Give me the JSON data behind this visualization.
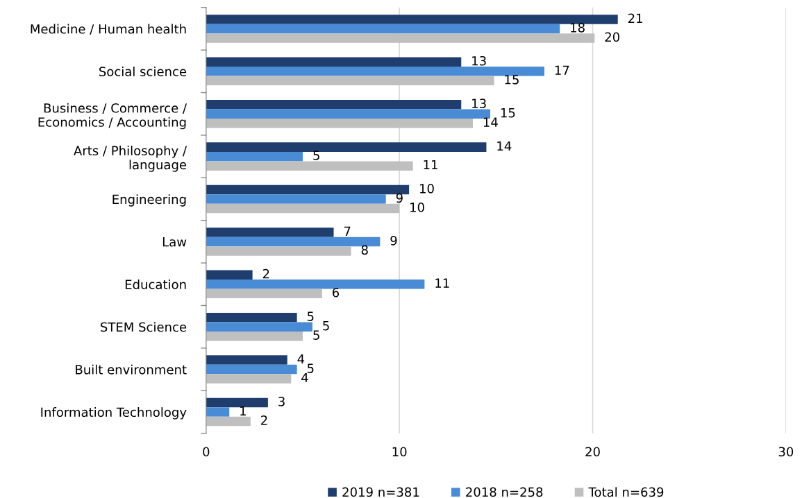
{
  "chart_data": {
    "type": "bar",
    "orientation": "horizontal",
    "categories": [
      "Medicine / Human health",
      "Social science",
      "Business / Commerce /\nEconomics / Accounting",
      "Arts / Philosophy /\nlanguage",
      "Engineering",
      "Law",
      "Education",
      "STEM Science",
      "Built environment",
      "Information Technology"
    ],
    "series": [
      {
        "name": "2019 n=381",
        "color": "#1f3e6e",
        "values": [
          21.3,
          13.2,
          13.2,
          14.5,
          10.5,
          6.6,
          2.4,
          4.7,
          4.2,
          3.2
        ],
        "value_labels": [
          "21",
          "13",
          "13",
          "14",
          "10",
          "7",
          "2",
          "5",
          "4",
          "3"
        ]
      },
      {
        "name": "2018 n=258",
        "color": "#4a8bd6",
        "values": [
          18.3,
          17.5,
          14.7,
          5.0,
          9.3,
          9.0,
          11.3,
          5.5,
          4.7,
          1.2
        ],
        "value_labels": [
          "18",
          "17",
          "15",
          "5",
          "9",
          "9",
          "11",
          "5",
          "5",
          "1"
        ]
      },
      {
        "name": "Total n=639",
        "color": "#bfbfbf",
        "values": [
          20.1,
          14.9,
          13.8,
          10.7,
          10.0,
          7.5,
          6.0,
          5.0,
          4.4,
          2.3
        ],
        "value_labels": [
          "20",
          "15",
          "14",
          "11",
          "10",
          "8",
          "6",
          "5",
          "4",
          "2"
        ]
      }
    ],
    "xlim": [
      0,
      30
    ],
    "xticks": [
      0,
      10,
      20,
      30
    ],
    "grid": "x",
    "legend": "bottom"
  }
}
